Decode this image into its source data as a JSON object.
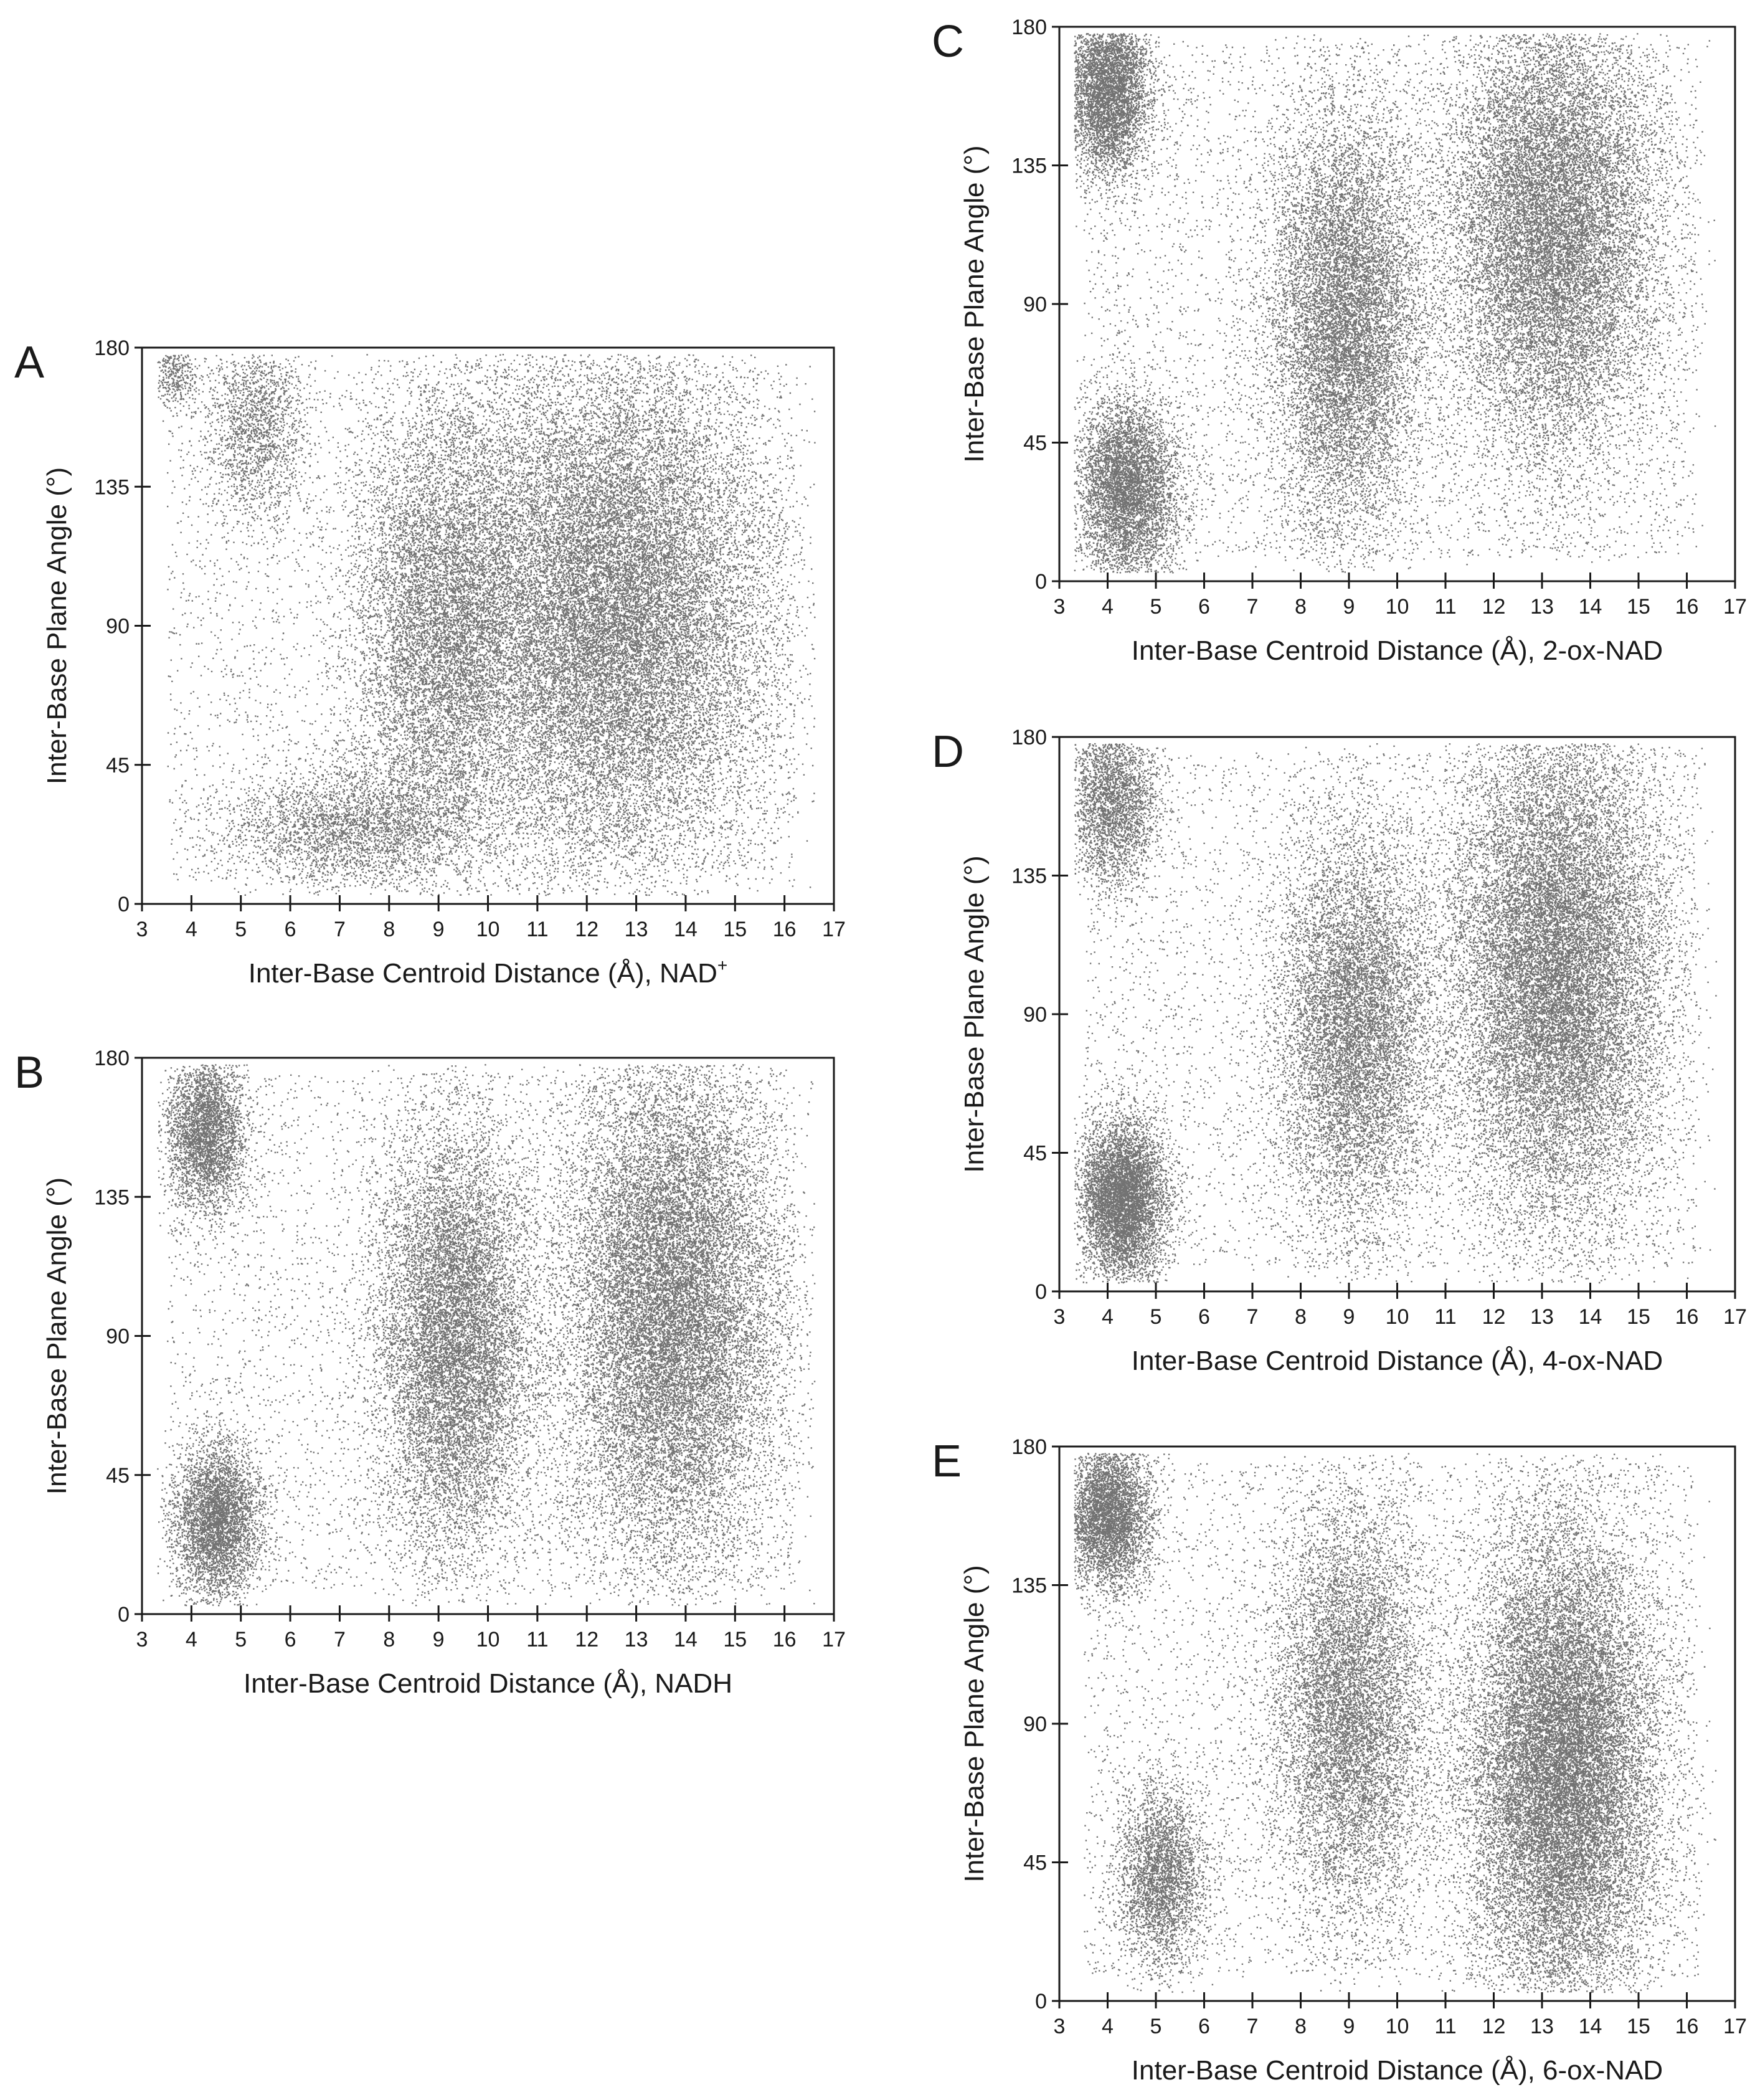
{
  "chart_data": [
    {
      "panel_label": "A",
      "type": "scatter",
      "xlabel": "Inter-Base Centroid Distance (Å), NAD",
      "xlabel_superscript": "+",
      "ylabel": "Inter-Base Plane Angle (°)",
      "xlim": [
        3,
        17
      ],
      "ylim": [
        0,
        180
      ],
      "xticks": [
        "3",
        "4",
        "5",
        "6",
        "7",
        "8",
        "9",
        "10",
        "11",
        "12",
        "13",
        "14",
        "15",
        "16",
        "17"
      ],
      "yticks": [
        "0",
        "45",
        "90",
        "135",
        "180"
      ],
      "density_clusters": [
        {
          "x": 3.6,
          "y": 172,
          "sx": 0.25,
          "sy": 6,
          "weight": 0.01
        },
        {
          "x": 5.3,
          "y": 155,
          "sx": 0.5,
          "sy": 16,
          "weight": 0.04
        },
        {
          "x": 9.0,
          "y": 90,
          "sx": 0.9,
          "sy": 38,
          "weight": 0.2
        },
        {
          "x": 12.5,
          "y": 95,
          "sx": 1.6,
          "sy": 42,
          "weight": 0.55
        },
        {
          "x": 7.2,
          "y": 25,
          "sx": 1.3,
          "sy": 10,
          "weight": 0.07
        }
      ]
    },
    {
      "panel_label": "B",
      "type": "scatter",
      "xlabel": "Inter-Base Centroid Distance (Å), NADH",
      "xlabel_superscript": "",
      "ylabel": "Inter-Base Plane Angle (°)",
      "xlim": [
        3,
        17
      ],
      "ylim": [
        0,
        180
      ],
      "xticks": [
        "3",
        "4",
        "5",
        "6",
        "7",
        "8",
        "9",
        "10",
        "11",
        "12",
        "13",
        "14",
        "15",
        "16",
        "17"
      ],
      "yticks": [
        "0",
        "45",
        "90",
        "135",
        "180"
      ],
      "density_clusters": [
        {
          "x": 4.3,
          "y": 155,
          "sx": 0.4,
          "sy": 13,
          "weight": 0.08
        },
        {
          "x": 4.5,
          "y": 30,
          "sx": 0.45,
          "sy": 13,
          "weight": 0.1
        },
        {
          "x": 9.3,
          "y": 90,
          "sx": 0.8,
          "sy": 35,
          "weight": 0.27
        },
        {
          "x": 13.7,
          "y": 100,
          "sx": 1.1,
          "sy": 42,
          "weight": 0.45
        }
      ]
    },
    {
      "panel_label": "C",
      "type": "scatter",
      "xlabel": "Inter-Base Centroid Distance (Å), 2-ox-NAD",
      "xlabel_superscript": "",
      "ylabel": "Inter-Base Plane Angle (°)",
      "xlim": [
        3,
        17
      ],
      "ylim": [
        0,
        180
      ],
      "xticks": [
        "3",
        "4",
        "5",
        "6",
        "7",
        "8",
        "9",
        "10",
        "11",
        "12",
        "13",
        "14",
        "15",
        "16",
        "17"
      ],
      "yticks": [
        "0",
        "45",
        "90",
        "135",
        "180"
      ],
      "density_clusters": [
        {
          "x": 4.0,
          "y": 160,
          "sx": 0.45,
          "sy": 14,
          "weight": 0.12
        },
        {
          "x": 4.4,
          "y": 30,
          "sx": 0.55,
          "sy": 15,
          "weight": 0.13
        },
        {
          "x": 8.9,
          "y": 85,
          "sx": 0.8,
          "sy": 35,
          "weight": 0.25
        },
        {
          "x": 13.2,
          "y": 115,
          "sx": 1.1,
          "sy": 38,
          "weight": 0.38
        }
      ]
    },
    {
      "panel_label": "D",
      "type": "scatter",
      "xlabel": "Inter-Base Centroid Distance (Å), 4-ox-NAD",
      "xlabel_superscript": "",
      "ylabel": "Inter-Base Plane Angle (°)",
      "xlim": [
        3,
        17
      ],
      "ylim": [
        0,
        180
      ],
      "xticks": [
        "3",
        "4",
        "5",
        "6",
        "7",
        "8",
        "9",
        "10",
        "11",
        "12",
        "13",
        "14",
        "15",
        "16",
        "17"
      ],
      "yticks": [
        "0",
        "45",
        "90",
        "135",
        "180"
      ],
      "density_clusters": [
        {
          "x": 4.1,
          "y": 160,
          "sx": 0.45,
          "sy": 14,
          "weight": 0.07
        },
        {
          "x": 4.3,
          "y": 30,
          "sx": 0.45,
          "sy": 13,
          "weight": 0.15
        },
        {
          "x": 9.1,
          "y": 85,
          "sx": 0.8,
          "sy": 33,
          "weight": 0.22
        },
        {
          "x": 13.3,
          "y": 105,
          "sx": 1.1,
          "sy": 42,
          "weight": 0.45
        }
      ]
    },
    {
      "panel_label": "E",
      "type": "scatter",
      "xlabel": "Inter-Base Centroid Distance (Å), 6-ox-NAD",
      "xlabel_superscript": "",
      "ylabel": "Inter-Base Plane Angle (°)",
      "xlim": [
        3,
        17
      ],
      "ylim": [
        0,
        180
      ],
      "xticks": [
        "3",
        "4",
        "5",
        "6",
        "7",
        "8",
        "9",
        "10",
        "11",
        "12",
        "13",
        "14",
        "15",
        "16",
        "17"
      ],
      "yticks": [
        "0",
        "45",
        "90",
        "135",
        "180"
      ],
      "density_clusters": [
        {
          "x": 4.0,
          "y": 158,
          "sx": 0.45,
          "sy": 12,
          "weight": 0.1
        },
        {
          "x": 5.1,
          "y": 40,
          "sx": 0.45,
          "sy": 15,
          "weight": 0.07
        },
        {
          "x": 9.0,
          "y": 95,
          "sx": 0.8,
          "sy": 35,
          "weight": 0.2
        },
        {
          "x": 13.4,
          "y": 75,
          "sx": 1.0,
          "sy": 40,
          "weight": 0.48
        }
      ]
    }
  ]
}
